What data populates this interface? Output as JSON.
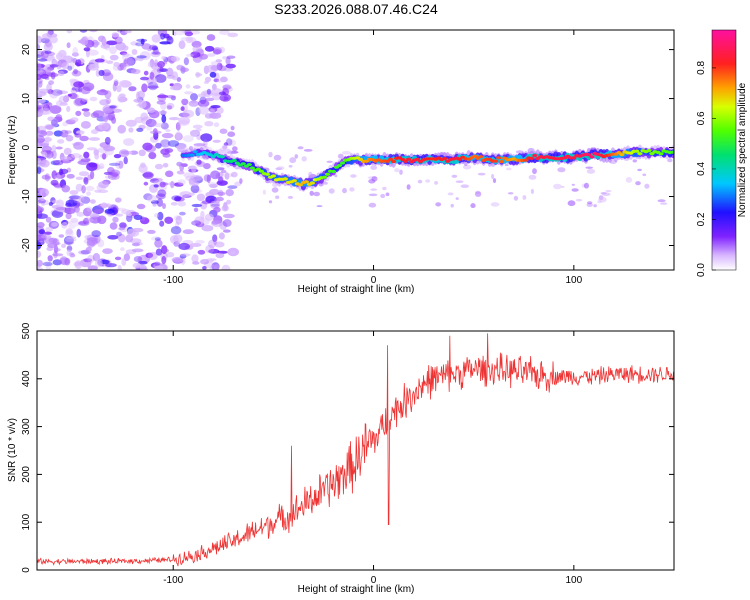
{
  "figure_title": "S233.2026.088.07.46.C24",
  "chart_data": [
    {
      "type": "heatmap",
      "title": "S233.2026.088.07.46.C24",
      "xlabel": "Height of straight line (km)",
      "ylabel": "Frequency (Hz)",
      "xlim": [
        -168,
        150
      ],
      "ylim": [
        -25,
        24
      ],
      "xticks": [
        -100,
        0,
        100
      ],
      "yticks": [
        -20,
        -10,
        0,
        10,
        20
      ],
      "colorbar": {
        "label": "Normalized spectral amplitude",
        "range": [
          0.0,
          0.95
        ],
        "ticks": [
          0.0,
          0.2,
          0.4,
          0.6,
          0.8
        ],
        "colormap": "rainbow (white-violet-blue-cyan-green-yellow-red-magenta)"
      },
      "noise_region": {
        "x_range": [
          -168,
          -82
        ],
        "freq_range": [
          -25,
          24
        ]
      },
      "ridge": {
        "x": [
          -95,
          -88,
          -80,
          -74,
          -68,
          -60,
          -52,
          -45,
          -40,
          -35,
          -30,
          -25,
          -20,
          -15,
          -10,
          -5,
          0,
          10,
          20,
          30,
          40,
          50,
          60,
          70,
          80,
          90,
          100,
          110,
          120,
          130,
          140,
          150
        ],
        "freq": [
          -1.5,
          -1.0,
          -1.5,
          -2.5,
          -3.0,
          -4.0,
          -6.0,
          -6.5,
          -7.0,
          -7.5,
          -7.0,
          -6.0,
          -4.5,
          -3.0,
          -2.5,
          -2.5,
          -2.5,
          -2.5,
          -2.5,
          -2.5,
          -2.5,
          -2.0,
          -2.5,
          -2.5,
          -2.0,
          -2.0,
          -2.0,
          -1.5,
          -1.5,
          -1.0,
          -1.0,
          -1.0
        ],
        "amplitude": [
          0.3,
          0.35,
          0.4,
          0.45,
          0.5,
          0.55,
          0.65,
          0.7,
          0.7,
          0.75,
          0.7,
          0.6,
          0.55,
          0.55,
          0.65,
          0.75,
          0.8,
          0.85,
          0.9,
          0.85,
          0.9,
          0.8,
          0.85,
          0.75,
          0.9,
          0.9,
          0.9,
          0.95,
          0.8,
          0.65,
          0.6,
          0.55
        ]
      }
    },
    {
      "type": "line",
      "xlabel": "Height of straight line (km)",
      "ylabel": "SNR (10 * v/v)",
      "xlim": [
        -168,
        150
      ],
      "ylim": [
        0,
        500
      ],
      "xticks": [
        -100,
        0,
        100
      ],
      "yticks": [
        0,
        100,
        200,
        300,
        400,
        500
      ],
      "color": "#ee3333",
      "series": [
        {
          "name": "SNR",
          "x": [
            -168,
            -150,
            -130,
            -110,
            -100,
            -90,
            -80,
            -70,
            -60,
            -50,
            -40,
            -30,
            -20,
            -10,
            -5,
            0,
            5,
            10,
            15,
            20,
            25,
            30,
            40,
            50,
            60,
            70,
            80,
            90,
            100,
            110,
            120,
            130,
            140,
            150
          ],
          "values": [
            18,
            18,
            18,
            20,
            22,
            30,
            45,
            60,
            80,
            100,
            120,
            150,
            180,
            220,
            250,
            270,
            300,
            330,
            350,
            370,
            390,
            400,
            410,
            420,
            420,
            415,
            410,
            405,
            405,
            405,
            410,
            410,
            410,
            410
          ]
        }
      ],
      "spikes": [
        {
          "x": -41,
          "value": 260
        },
        {
          "x": 7,
          "value": 470
        },
        {
          "x": 7.5,
          "value": 95
        },
        {
          "x": 57,
          "value": 495
        },
        {
          "x": 38,
          "value": 490
        }
      ]
    }
  ]
}
